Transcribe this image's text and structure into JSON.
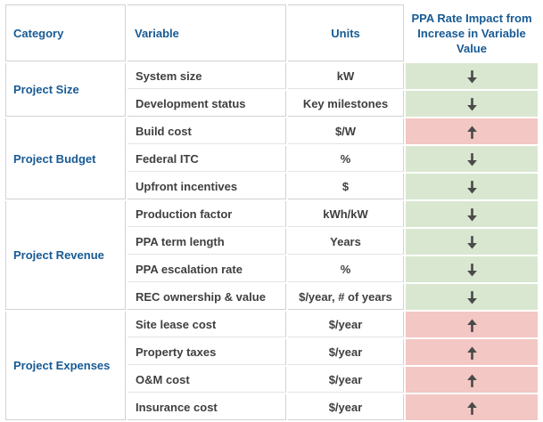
{
  "table": {
    "columns": [
      {
        "label": "Category"
      },
      {
        "label": "Variable"
      },
      {
        "label": "Units"
      },
      {
        "label": "PPA Rate Impact from Increase in Variable Value"
      }
    ],
    "groups": [
      {
        "category": "Project Size",
        "rows": [
          {
            "variable": "System size",
            "units": "kW",
            "impact": "decrease"
          },
          {
            "variable": "Development status",
            "units": "Key milestones",
            "impact": "decrease"
          }
        ]
      },
      {
        "category": "Project Budget",
        "rows": [
          {
            "variable": "Build cost",
            "units": "$/W",
            "impact": "increase"
          },
          {
            "variable": "Federal ITC",
            "units": "%",
            "impact": "decrease"
          },
          {
            "variable": "Upfront incentives",
            "units": "$",
            "impact": "decrease"
          }
        ]
      },
      {
        "category": "Project Revenue",
        "rows": [
          {
            "variable": "Production factor",
            "units": "kWh/kW",
            "impact": "decrease"
          },
          {
            "variable": "PPA term length",
            "units": "Years",
            "impact": "decrease"
          },
          {
            "variable": "PPA escalation rate",
            "units": "%",
            "impact": "decrease"
          },
          {
            "variable": "REC ownership & value",
            "units": "$/year, # of years",
            "impact": "decrease"
          }
        ]
      },
      {
        "category": "Project Expenses",
        "rows": [
          {
            "variable": "Site lease cost",
            "units": "$/year",
            "impact": "increase"
          },
          {
            "variable": "Property taxes",
            "units": "$/year",
            "impact": "increase"
          },
          {
            "variable": "O&M cost",
            "units": "$/year",
            "impact": "increase"
          },
          {
            "variable": "Insurance cost",
            "units": "$/year",
            "impact": "increase"
          }
        ]
      }
    ]
  },
  "icons": {
    "decrease": "down-arrow-icon",
    "increase": "up-arrow-icon"
  },
  "colors": {
    "header_text": "#175a94",
    "category_text": "#175a94",
    "body_text": "#3f3f3f",
    "decrease_bg": "#d9e7d0",
    "increase_bg": "#f3c7c4",
    "arrow": "#4a4a4a",
    "border_outer": "#d2d2d2",
    "border_inner": "#e4e4e4"
  },
  "chart_data": {
    "type": "table",
    "title": "",
    "columns": [
      "Category",
      "Variable",
      "Units",
      "PPA Rate Impact from Increase in Variable Value"
    ],
    "rows": [
      [
        "Project Size",
        "System size",
        "kW",
        "decrease"
      ],
      [
        "Project Size",
        "Development status",
        "Key milestones",
        "decrease"
      ],
      [
        "Project Budget",
        "Build cost",
        "$/W",
        "increase"
      ],
      [
        "Project Budget",
        "Federal ITC",
        "%",
        "decrease"
      ],
      [
        "Project Budget",
        "Upfront incentives",
        "$",
        "decrease"
      ],
      [
        "Project Revenue",
        "Production factor",
        "kWh/kW",
        "decrease"
      ],
      [
        "Project Revenue",
        "PPA term length",
        "Years",
        "decrease"
      ],
      [
        "Project Revenue",
        "PPA escalation rate",
        "%",
        "decrease"
      ],
      [
        "Project Revenue",
        "REC ownership & value",
        "$/year, # of years",
        "decrease"
      ],
      [
        "Project Expenses",
        "Site lease cost",
        "$/year",
        "increase"
      ],
      [
        "Project Expenses",
        "Property taxes",
        "$/year",
        "increase"
      ],
      [
        "Project Expenses",
        "O&M cost",
        "$/year",
        "increase"
      ],
      [
        "Project Expenses",
        "Insurance cost",
        "$/year",
        "increase"
      ]
    ],
    "legend": {
      "decrease": "green cell with down arrow",
      "increase": "red cell with up arrow"
    }
  }
}
